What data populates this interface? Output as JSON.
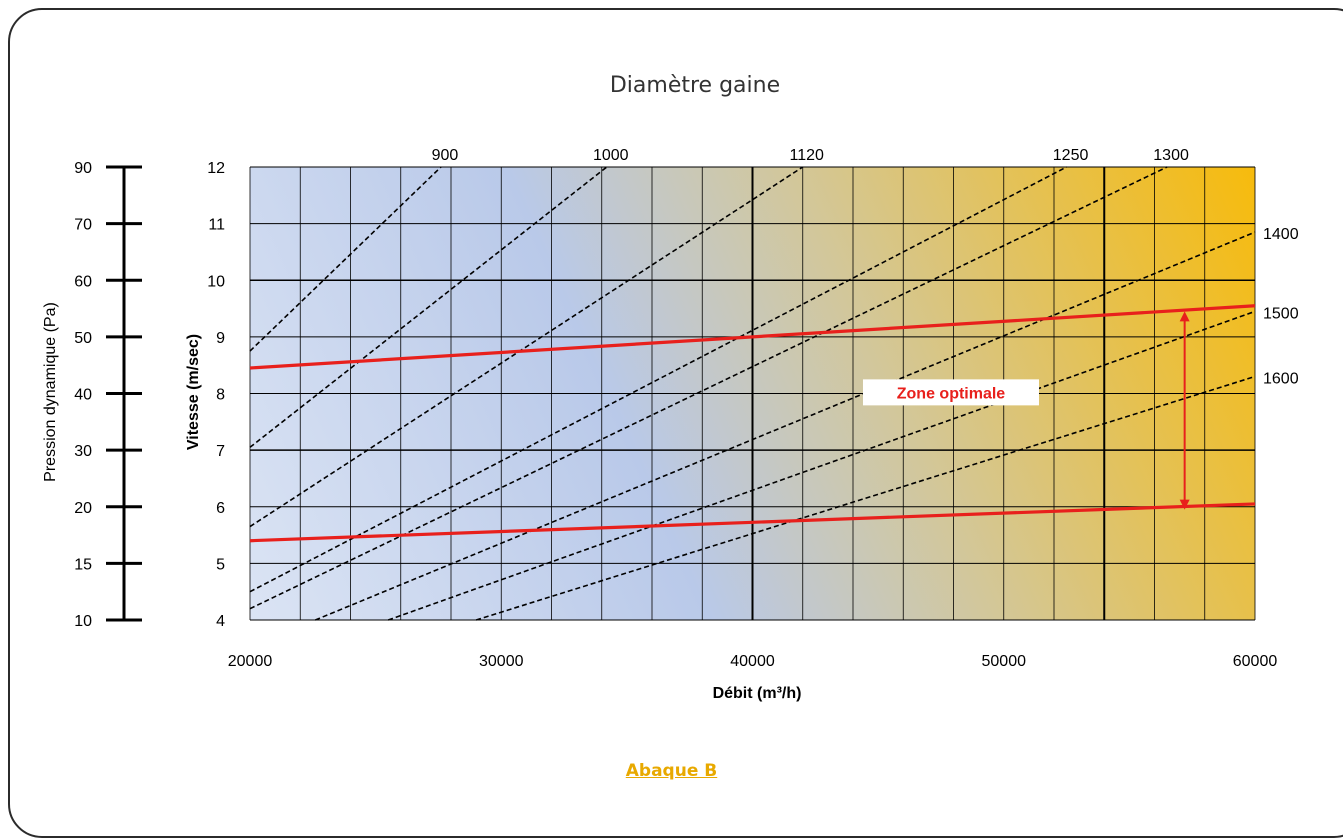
{
  "chart_data": {
    "type": "line",
    "title": "Diamètre gaine",
    "xlabel": "Débit (m³/h)",
    "ylabel": "Vitesse (m/sec)",
    "ylabel_left": "Pression dynamique (Pa)",
    "xlim": [
      20000,
      60000
    ],
    "ylim": [
      4,
      12
    ],
    "x_ticks": [
      "20000",
      "30000",
      "40000",
      "50000",
      "60000"
    ],
    "y_ticks": [
      "4",
      "5",
      "6",
      "7",
      "8",
      "9",
      "10",
      "11",
      "12"
    ],
    "pressure_scale": [
      {
        "label": "10",
        "v": 4
      },
      {
        "label": "15",
        "v": 5
      },
      {
        "label": "20",
        "v": 6
      },
      {
        "label": "30",
        "v": 7
      },
      {
        "label": "40",
        "v": 8
      },
      {
        "label": "50",
        "v": 9
      },
      {
        "label": "60",
        "v": 10
      },
      {
        "label": "70",
        "v": 11
      },
      {
        "label": "90",
        "v": 12
      }
    ],
    "grid": true,
    "series": [
      {
        "name": "900",
        "style": "dashed",
        "color": "#000000",
        "x": [
          20000,
          27600
        ],
        "y": [
          8.75,
          12.0
        ]
      },
      {
        "name": "1000",
        "style": "dashed",
        "color": "#000000",
        "x": [
          20000,
          34200
        ],
        "y": [
          7.05,
          12.0
        ]
      },
      {
        "name": "1120",
        "style": "dashed",
        "color": "#000000",
        "x": [
          20000,
          42000
        ],
        "y": [
          5.65,
          12.0
        ]
      },
      {
        "name": "1250",
        "style": "dashed",
        "color": "#000000",
        "x": [
          20000,
          52500
        ],
        "y": [
          4.5,
          12.0
        ]
      },
      {
        "name": "1300",
        "style": "dashed",
        "color": "#000000",
        "x": [
          20000,
          56500
        ],
        "y": [
          4.2,
          12.0
        ]
      },
      {
        "name": "1400",
        "style": "dashed",
        "color": "#000000",
        "x": [
          22600,
          60000
        ],
        "y": [
          4.0,
          10.85
        ]
      },
      {
        "name": "1500",
        "style": "dashed",
        "color": "#000000",
        "x": [
          25500,
          60000
        ],
        "y": [
          4.0,
          9.45
        ]
      },
      {
        "name": "1600",
        "style": "dashed",
        "color": "#000000",
        "x": [
          29000,
          60000
        ],
        "y": [
          4.0,
          8.3
        ]
      },
      {
        "name": "",
        "style": "solid",
        "color": "#e8201c",
        "x": [
          20000,
          60000
        ],
        "y": [
          8.45,
          9.55
        ]
      },
      {
        "name": "",
        "style": "solid",
        "color": "#e8201c",
        "x": [
          20000,
          60000
        ],
        "y": [
          5.4,
          6.05
        ]
      }
    ],
    "annotations": [
      {
        "text": "Zone optimale",
        "x": 47900,
        "y": 8.02,
        "color": "#e8201c"
      }
    ],
    "arrow": {
      "x": 57200,
      "y_from": 9.45,
      "y_to": 5.95,
      "color": "#e8201c"
    },
    "colors": {
      "background_cool": "#b8c8e8",
      "background_warm": "#f6bc12",
      "grid": "#000000",
      "accent": "#e8201c"
    }
  },
  "caption": "Abaque B"
}
